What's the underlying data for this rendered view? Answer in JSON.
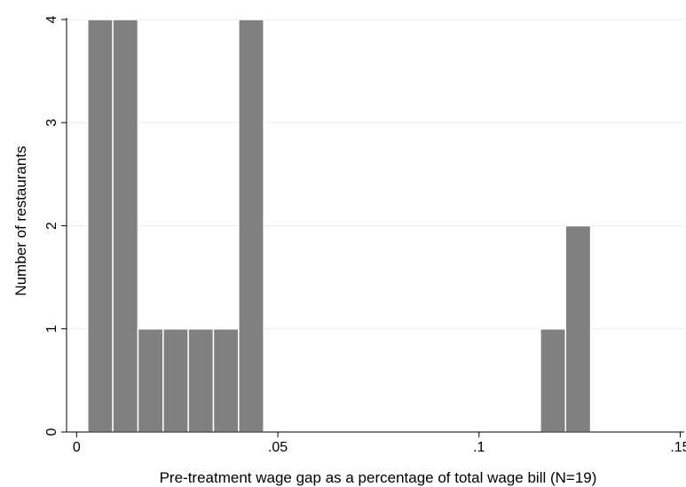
{
  "chart_data": {
    "type": "bar",
    "subtype": "histogram",
    "title": "",
    "xlabel": "Pre-treatment wage gap as a percentage of total wage bill (N=19)",
    "ylabel": "Number of restaurants",
    "xlim": [
      -0.0025,
      0.151
    ],
    "ylim": [
      0,
      4
    ],
    "x_ticks": [
      {
        "value": 0,
        "label": "0"
      },
      {
        "value": 0.05,
        "label": ".05"
      },
      {
        "value": 0.1,
        "label": ".1"
      },
      {
        "value": 0.15,
        "label": ".15"
      }
    ],
    "y_ticks": [
      {
        "value": 0,
        "label": "0"
      },
      {
        "value": 1,
        "label": "1"
      },
      {
        "value": 2,
        "label": "2"
      },
      {
        "value": 3,
        "label": "3"
      },
      {
        "value": 4,
        "label": "4"
      }
    ],
    "bin_width": 0.00625,
    "bins": [
      {
        "x0": 0.00275,
        "x1": 0.009,
        "count": 4
      },
      {
        "x0": 0.009,
        "x1": 0.01525,
        "count": 4
      },
      {
        "x0": 0.01525,
        "x1": 0.0215,
        "count": 1
      },
      {
        "x0": 0.0215,
        "x1": 0.02775,
        "count": 1
      },
      {
        "x0": 0.02775,
        "x1": 0.034,
        "count": 1
      },
      {
        "x0": 0.034,
        "x1": 0.04025,
        "count": 1
      },
      {
        "x0": 0.04025,
        "x1": 0.0465,
        "count": 4
      },
      {
        "x0": 0.11525,
        "x1": 0.1215,
        "count": 1
      },
      {
        "x0": 0.1215,
        "x1": 0.12775,
        "count": 2
      }
    ],
    "grid": {
      "y": true,
      "x": false
    },
    "legend": "none",
    "colors": {
      "bar_fill": "#808080",
      "bar_edge": "#ffffff",
      "axis": "#000000",
      "grid": "#eaeaea",
      "background": "#ffffff"
    }
  }
}
